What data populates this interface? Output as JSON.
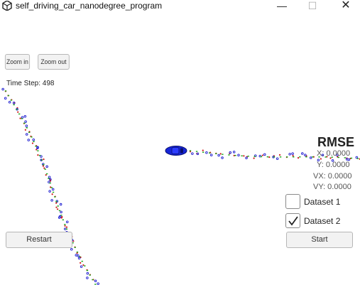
{
  "window": {
    "title": "self_driving_car_nanodegree_program",
    "minimize": "—",
    "maximize": "☐",
    "close": "✕"
  },
  "toolbar": {
    "zoom_in": "Zoom in",
    "zoom_out": "Zoom out"
  },
  "hud": {
    "time_step": "Time Step: 498"
  },
  "rmse": {
    "title": "RMSE",
    "x": "X: 0.0000",
    "y": "Y: 0.0000",
    "vx": "VX: 0.0000",
    "vy": "VY: 0.0000"
  },
  "datasets": [
    {
      "label": "Dataset 1",
      "checked": false
    },
    {
      "label": "Dataset 2",
      "checked": true
    }
  ],
  "controls": {
    "restart": "Restart",
    "start": "Start"
  },
  "colors": {
    "car": "#1626d8",
    "lidar": "#d01818",
    "radar": "#1a1ad0",
    "estimate": "#18a818"
  }
}
